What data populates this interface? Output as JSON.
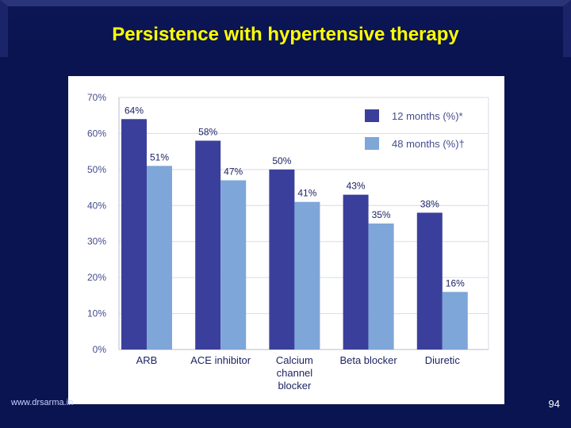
{
  "slide": {
    "title": "Persistence with hypertensive therapy",
    "footer_left": "www.drsarma.in",
    "page_number": "94"
  },
  "colors": {
    "background": "#0a1450",
    "title": "#ffff00",
    "series_12m": "#3b3f9c",
    "series_48m": "#7ea6d8"
  },
  "chart_data": {
    "type": "bar",
    "categories": [
      "ARB",
      "ACE inhibitor",
      "Calcium\nchannel\nblocker",
      "Beta blocker",
      "Diuretic"
    ],
    "series": [
      {
        "name": "12 months (%)*",
        "values": [
          64,
          58,
          50,
          43,
          38
        ],
        "labels": [
          "64%",
          "58%",
          "50%",
          "43%",
          "38%"
        ]
      },
      {
        "name": "48 months (%)†",
        "values": [
          51,
          47,
          41,
          35,
          16
        ],
        "labels": [
          "51%",
          "47%",
          "41%",
          "35%",
          "16%"
        ]
      }
    ],
    "y_ticks": [
      "0%",
      "10%",
      "20%",
      "30%",
      "40%",
      "50%",
      "60%",
      "70%"
    ],
    "ylim": [
      0,
      70
    ],
    "grid": true,
    "legend": "top-right"
  }
}
